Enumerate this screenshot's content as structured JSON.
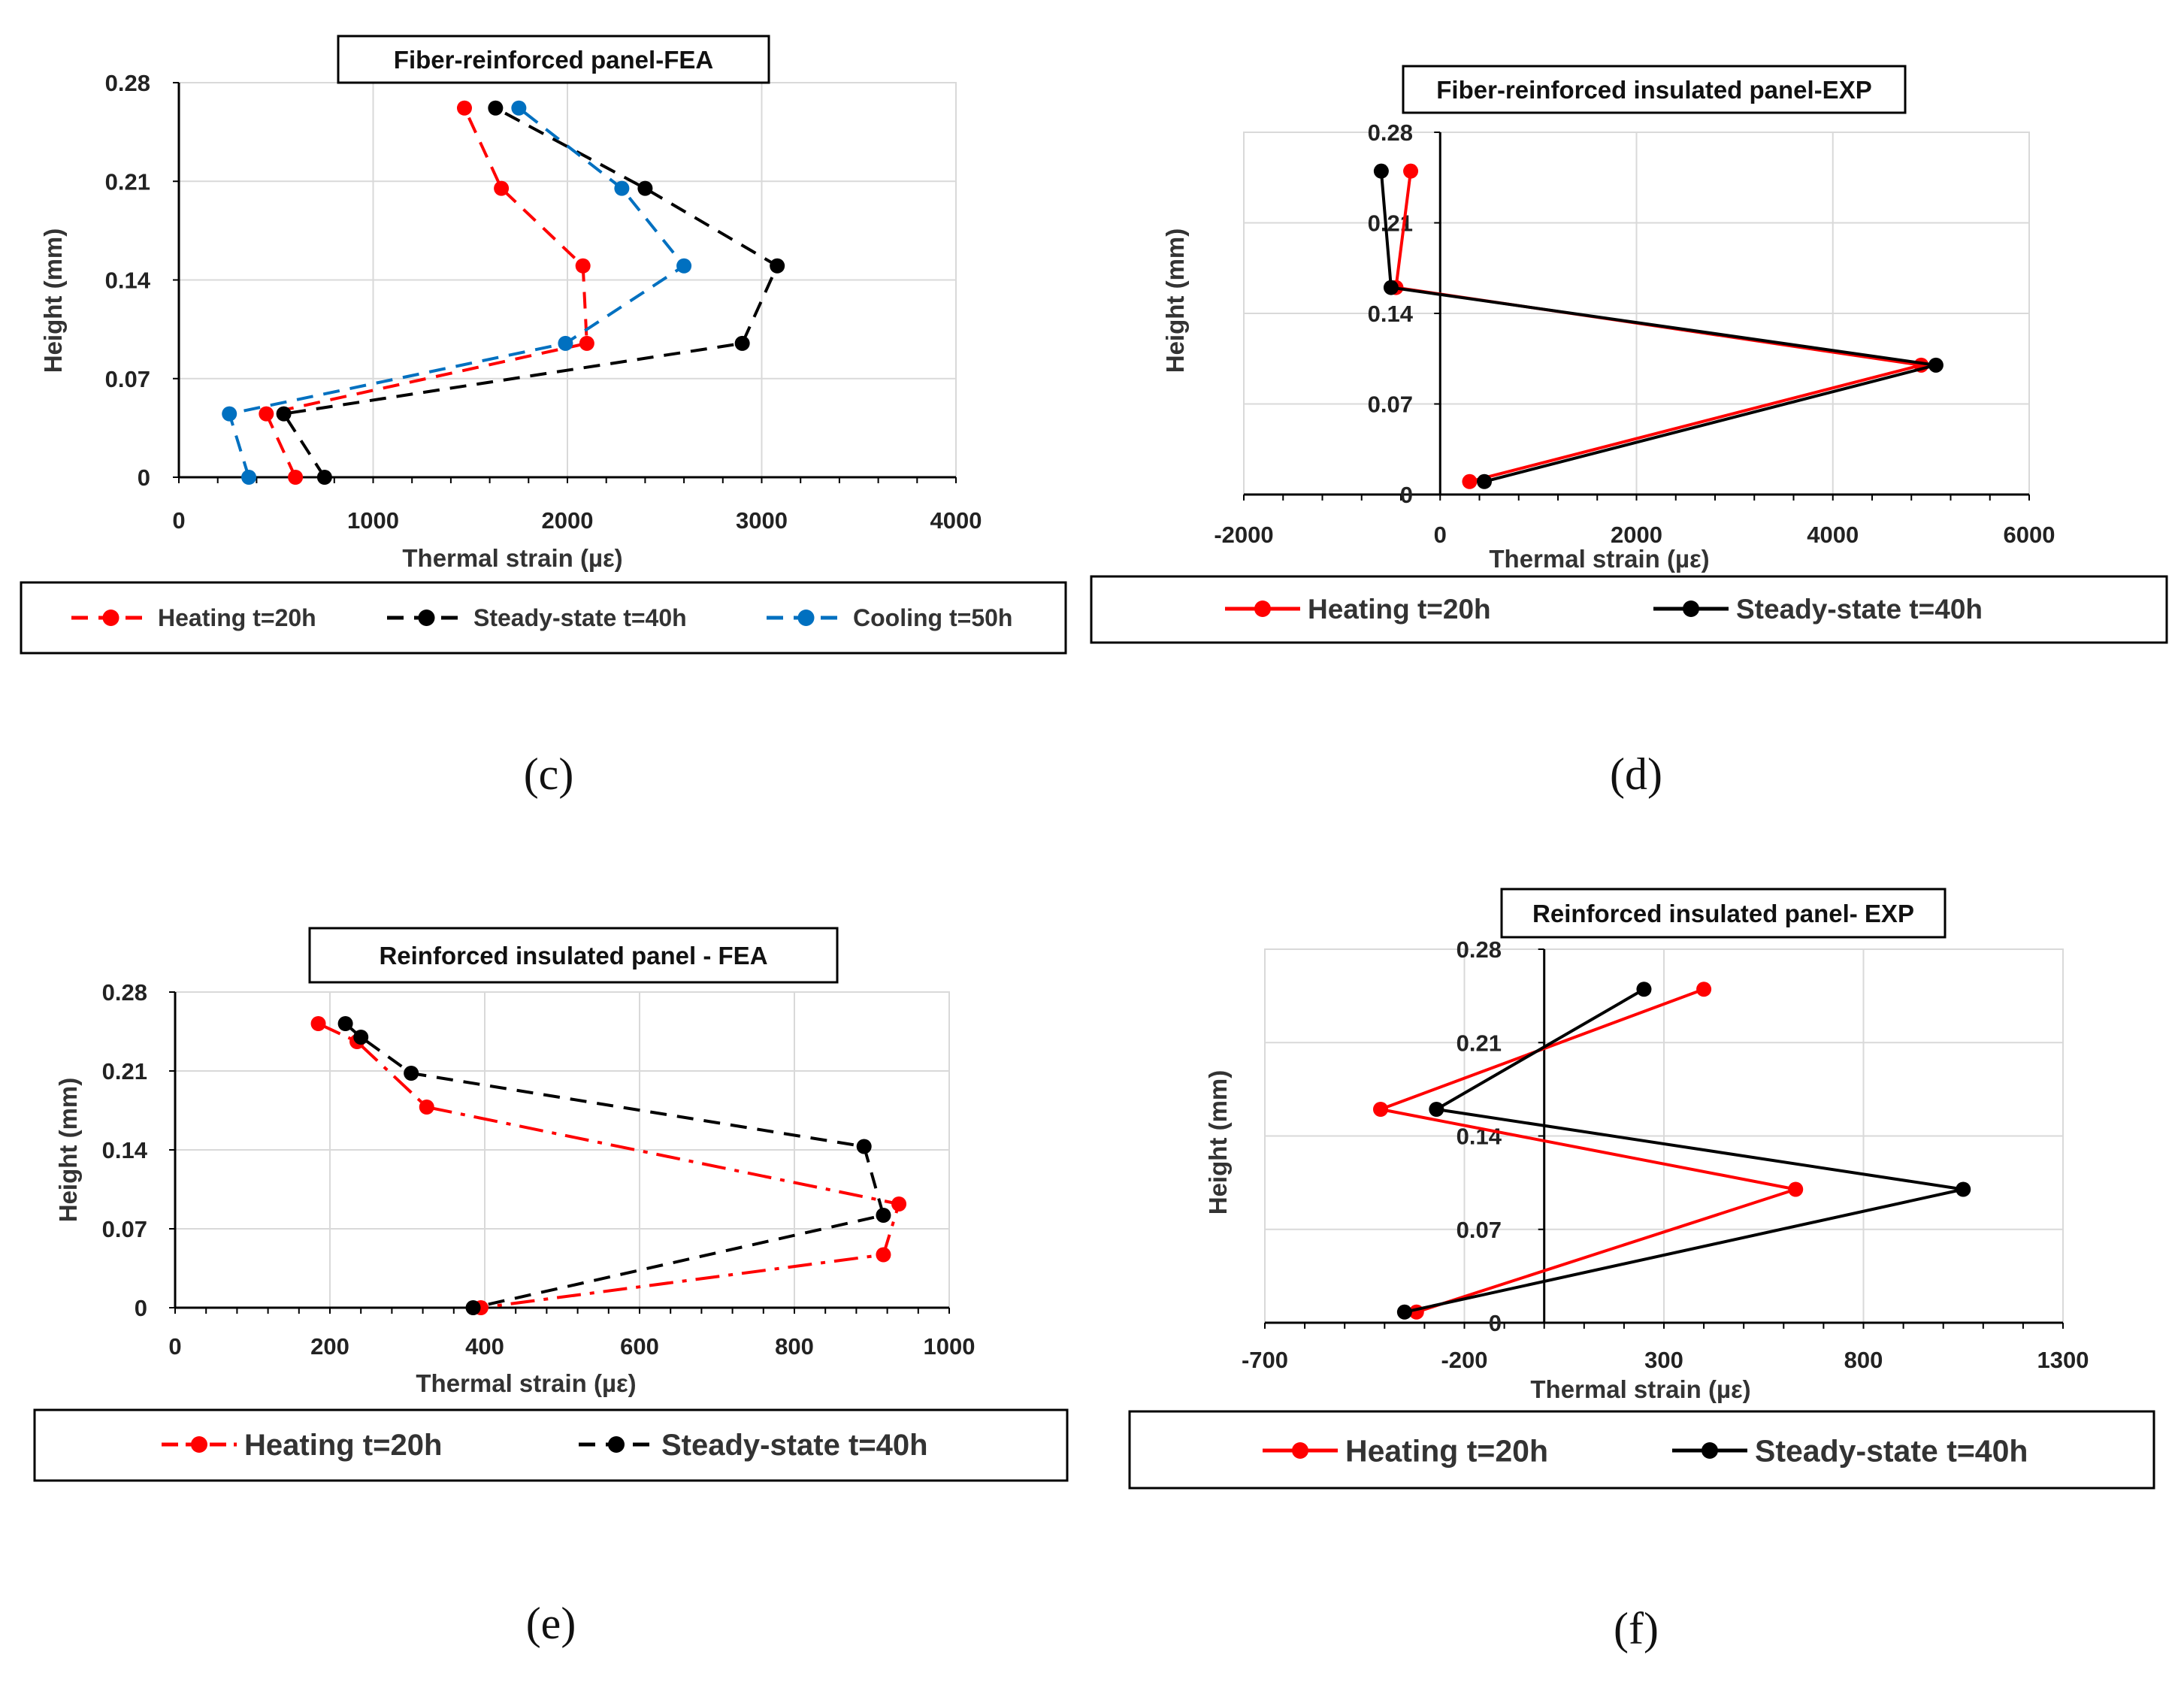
{
  "figure": {
    "colors": {
      "heating": "#ff0000",
      "steady": "#000000",
      "cooling": "#0070c0",
      "grid": "#d9d9d9",
      "axis": "#000000"
    }
  },
  "chart_data": [
    {
      "id": "c",
      "type": "line",
      "panel_label": "(c)",
      "title": "Fiber-reinforced panel-FEA",
      "xlabel": "Thermal strain (µε)",
      "ylabel": "Height (mm)",
      "xlim": [
        0,
        4000
      ],
      "ylim": [
        0,
        0.28
      ],
      "xticks": [
        "0",
        "1000",
        "2000",
        "3000",
        "4000"
      ],
      "yticks": [
        "0",
        "0.07",
        "0.14",
        "0.21",
        "0.28"
      ],
      "grid": true,
      "legend_position": "bottom",
      "series": [
        {
          "name": "Heating t=20h",
          "color": "#ff0000",
          "dash": "dashed",
          "points": [
            [
              600,
              0
            ],
            [
              450,
              0.045
            ],
            [
              2100,
              0.095
            ],
            [
              2080,
              0.15
            ],
            [
              1660,
              0.205
            ],
            [
              1470,
              0.262
            ]
          ]
        },
        {
          "name": "Steady-state t=40h",
          "color": "#000000",
          "dash": "dashed",
          "points": [
            [
              750,
              0
            ],
            [
              540,
              0.045
            ],
            [
              2900,
              0.095
            ],
            [
              3080,
              0.15
            ],
            [
              2400,
              0.205
            ],
            [
              1630,
              0.262
            ]
          ]
        },
        {
          "name": "Cooling t=50h",
          "color": "#0070c0",
          "dash": "dashed",
          "points": [
            [
              360,
              0
            ],
            [
              260,
              0.045
            ],
            [
              1990,
              0.095
            ],
            [
              2600,
              0.15
            ],
            [
              2280,
              0.205
            ],
            [
              1750,
              0.262
            ]
          ]
        }
      ]
    },
    {
      "id": "d",
      "type": "line",
      "panel_label": "(d)",
      "title": "Fiber-reinforced insulated panel-EXP",
      "xlabel": "Thermal strain (µε)",
      "ylabel": "Height (mm)",
      "xlim": [
        -2000,
        6000
      ],
      "ylim": [
        0,
        0.28
      ],
      "xticks": [
        "-2000",
        "0",
        "2000",
        "4000",
        "6000"
      ],
      "yticks": [
        "0",
        "0.07",
        "0.14",
        "0.21",
        "0.28"
      ],
      "grid": true,
      "legend_position": "bottom",
      "series": [
        {
          "name": "Heating t=20h",
          "color": "#ff0000",
          "dash": "solid",
          "points": [
            [
              -300,
              0.25
            ],
            [
              -450,
              0.16
            ],
            [
              4900,
              0.1
            ],
            [
              300,
              0.01
            ]
          ]
        },
        {
          "name": "Steady-state t=40h",
          "color": "#000000",
          "dash": "solid",
          "points": [
            [
              -600,
              0.25
            ],
            [
              -500,
              0.16
            ],
            [
              5050,
              0.1
            ],
            [
              450,
              0.01
            ]
          ]
        }
      ]
    },
    {
      "id": "e",
      "type": "line",
      "panel_label": "(e)",
      "title": "Reinforced insulated panel - FEA",
      "xlabel": "Thermal strain (µε)",
      "ylabel": "Height (mm)",
      "xlim": [
        0,
        1000
      ],
      "ylim": [
        0,
        0.28
      ],
      "xticks": [
        "0",
        "200",
        "400",
        "600",
        "800",
        "1000"
      ],
      "yticks": [
        "0",
        "0.07",
        "0.14",
        "0.21",
        "0.28"
      ],
      "grid": true,
      "legend_position": "bottom",
      "series": [
        {
          "name": "Heating t=20h",
          "color": "#ff0000",
          "dash": "dashdot",
          "points": [
            [
              185,
              0.252
            ],
            [
              235,
              0.236
            ],
            [
              325,
              0.178
            ],
            [
              935,
              0.092
            ],
            [
              915,
              0.047
            ],
            [
              395,
              0
            ]
          ]
        },
        {
          "name": "Steady-state t=40h",
          "color": "#000000",
          "dash": "dashed",
          "points": [
            [
              220,
              0.252
            ],
            [
              240,
              0.24
            ],
            [
              305,
              0.208
            ],
            [
              890,
              0.143
            ],
            [
              915,
              0.082
            ],
            [
              385,
              0
            ]
          ]
        }
      ]
    },
    {
      "id": "f",
      "type": "line",
      "panel_label": "(f)",
      "title": "Reinforced insulated panel- EXP",
      "xlabel": "Thermal strain (µε)",
      "ylabel": "Height (mm)",
      "xlim": [
        -700,
        1300
      ],
      "ylim": [
        0,
        0.28
      ],
      "xticks": [
        "-700",
        "-200",
        "300",
        "800",
        "1300"
      ],
      "yticks": [
        "0",
        "0.07",
        "0.14",
        "0.21",
        "0.28"
      ],
      "grid": true,
      "legend_position": "bottom",
      "series": [
        {
          "name": "Heating t=20h",
          "color": "#ff0000",
          "dash": "solid",
          "points": [
            [
              400,
              0.25
            ],
            [
              -410,
              0.16
            ],
            [
              630,
              0.1
            ],
            [
              -320,
              0.008
            ]
          ]
        },
        {
          "name": "Steady-state t=40h",
          "color": "#000000",
          "dash": "solid",
          "points": [
            [
              250,
              0.25
            ],
            [
              -270,
              0.16
            ],
            [
              1050,
              0.1
            ],
            [
              -350,
              0.008
            ]
          ]
        }
      ]
    }
  ]
}
